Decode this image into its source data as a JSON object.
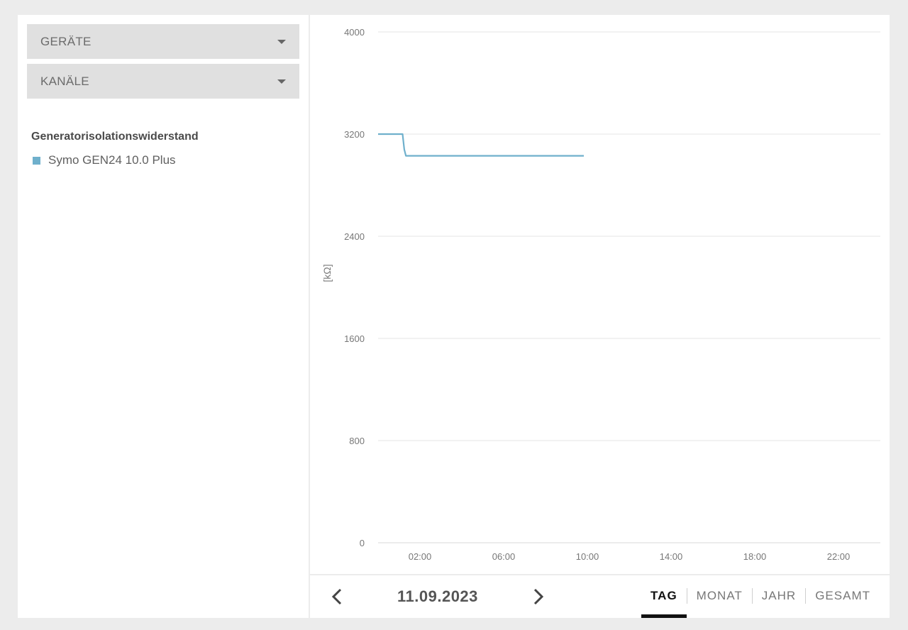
{
  "filters": {
    "devices_label": "GERÄTE",
    "channels_label": "KANÄLE"
  },
  "legend": {
    "title": "Generatorisolationswiderstand",
    "series_name": "Symo GEN24 10.0 Plus",
    "series_color": "#6fb0cc"
  },
  "chart_data": {
    "type": "line",
    "title": "",
    "xlabel": "",
    "ylabel": "[kΩ]",
    "xlim": [
      0,
      24
    ],
    "ylim": [
      0,
      4000
    ],
    "y_ticks": [
      0,
      800,
      1600,
      2400,
      3200,
      4000
    ],
    "x_ticks": [
      2,
      6,
      10,
      14,
      18,
      22
    ],
    "x_tick_labels": [
      "02:00",
      "06:00",
      "10:00",
      "14:00",
      "18:00",
      "22:00"
    ],
    "grid": true,
    "series": [
      {
        "name": "Symo GEN24 10.0 Plus",
        "color": "#6fb0cc",
        "x": [
          0,
          1.17,
          1.25,
          1.33,
          9.83
        ],
        "y": [
          3200,
          3200,
          3080,
          3030,
          3030
        ]
      }
    ]
  },
  "navigation": {
    "date": "11.09.2023",
    "prev_icon": "chevron-left-icon",
    "next_icon": "chevron-right-icon"
  },
  "period_tabs": [
    {
      "label": "TAG",
      "active": true
    },
    {
      "label": "MONAT",
      "active": false
    },
    {
      "label": "JAHR",
      "active": false
    },
    {
      "label": "GESAMT",
      "active": false
    }
  ]
}
